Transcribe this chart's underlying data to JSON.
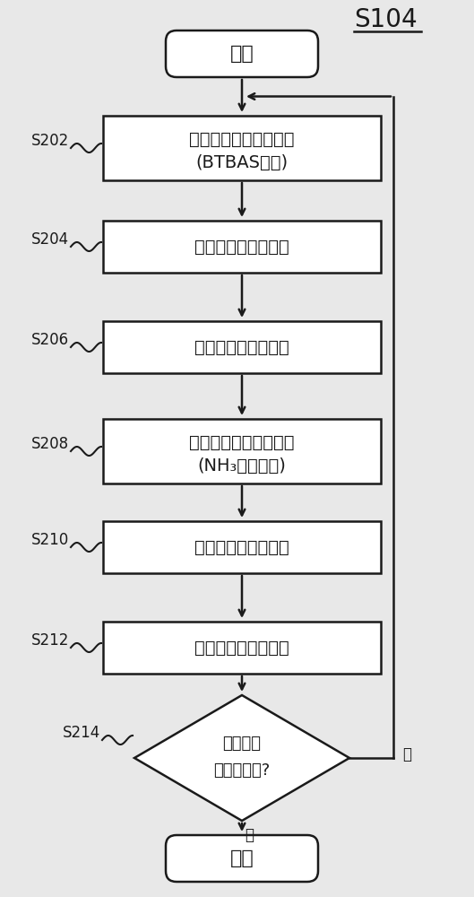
{
  "title": "S104",
  "bg_color": "#e8e8e8",
  "box_color": "#ffffff",
  "box_edge_color": "#1a1a1a",
  "text_color": "#1a1a1a",
  "arrow_color": "#1a1a1a",
  "start_end_text": [
    "开始",
    "结束"
  ],
  "step_labels": [
    "S202",
    "S204",
    "S206",
    "S208",
    "S210",
    "S212",
    "S214"
  ],
  "step_texts": [
    "第一处理气体供给工序\n(BTBAS供给)",
    "第一簇射头排气工序",
    "第一处理室排气工序",
    "第二处理气体供给工序\n(NH₃气体供给)",
    "第二簇射头排气工序",
    "第二处理室排气工序",
    "是否实施\n了规定次数?"
  ],
  "yes_label": "是",
  "no_label": "否",
  "font_size_main": 14,
  "font_size_label": 12,
  "font_size_title": 20,
  "font_size_start_end": 16
}
